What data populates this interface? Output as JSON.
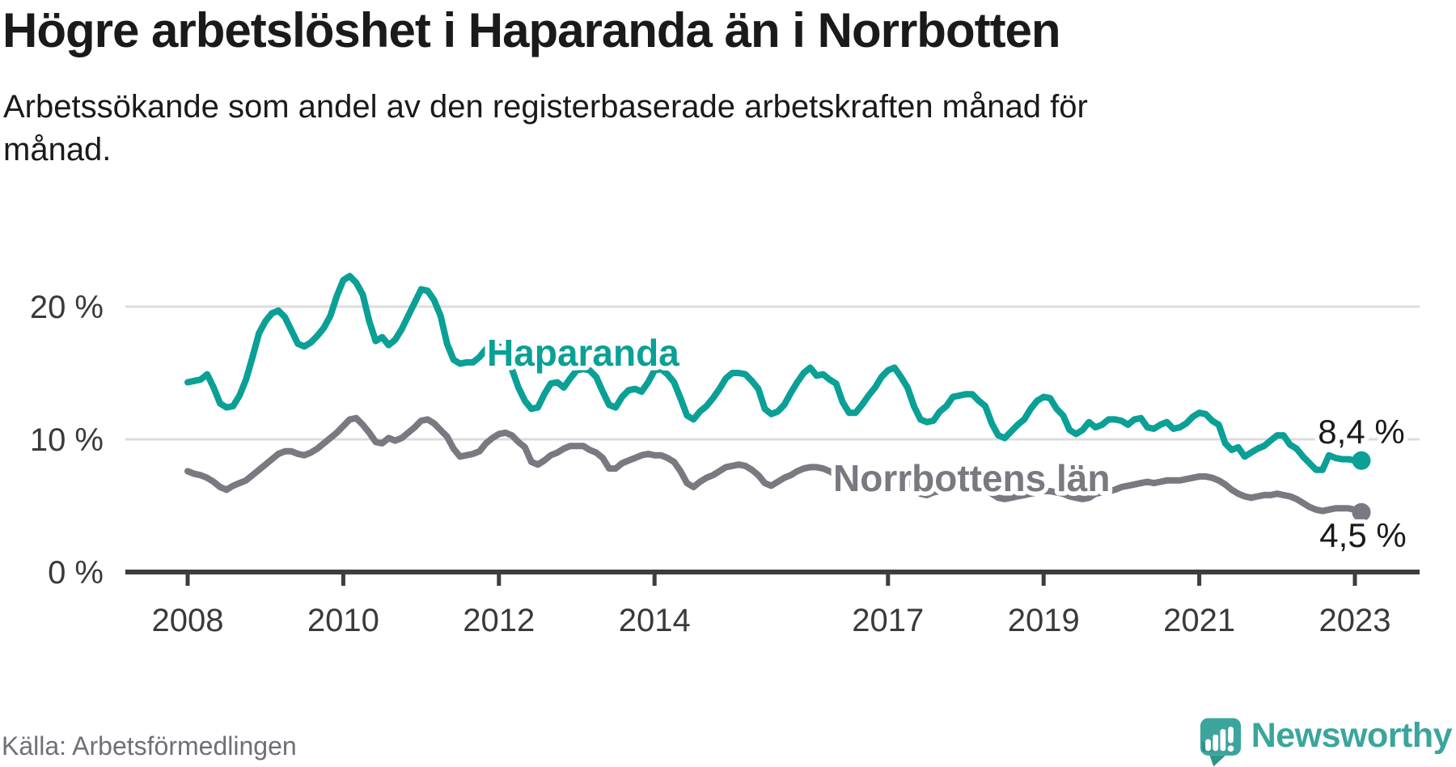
{
  "title": "Högre arbetslöshet i Haparanda än i Norrbotten",
  "subtitle_lines": [
    "Arbetssökande som andel av den registerbaserade arbetskraften månad för",
    "månad."
  ],
  "source": "Källa: Arbetsförmedlingen",
  "brand": {
    "name": "Newsworthy",
    "color": "#3ba59d"
  },
  "colors": {
    "haparanda": "#0aa096",
    "norrbotten": "#7a7880",
    "grid": "#dcdcdc",
    "axis": "#3d3d3d",
    "text": "#1a1a1a",
    "muted_text": "#6f6f78",
    "logo_teal": "#3ba59d"
  },
  "chart_data": {
    "type": "line",
    "title": "Högre arbetslöshet i Haparanda än i Norrbotten",
    "xlabel": "",
    "ylabel": "",
    "unit": "%",
    "frequency": "monthly",
    "x_start": "2008-01",
    "x_end": "2023-02",
    "x_tick_years": [
      2008,
      2010,
      2012,
      2014,
      2017,
      2019,
      2021,
      2023
    ],
    "y_ticks": [
      {
        "value": 0,
        "label": "0 %"
      },
      {
        "value": 10,
        "label": "10 %"
      },
      {
        "value": 20,
        "label": "20 %"
      }
    ],
    "ylim": [
      0,
      23.5
    ],
    "grid": "horizontal",
    "legend": "inline-labels",
    "series": [
      {
        "name": "Haparanda",
        "color": "#0aa096",
        "end_label": "8,4 %",
        "last_value": 8.4,
        "values": [
          14.3,
          14.4,
          14.5,
          14.9,
          13.9,
          12.7,
          12.4,
          12.5,
          13.3,
          14.5,
          16.2,
          18.0,
          18.9,
          19.5,
          19.7,
          19.2,
          18.2,
          17.2,
          17.0,
          17.3,
          17.8,
          18.4,
          19.3,
          20.8,
          22.0,
          22.3,
          21.8,
          20.9,
          18.9,
          17.4,
          17.7,
          17.1,
          17.5,
          18.3,
          19.3,
          20.3,
          21.3,
          21.2,
          20.5,
          19.3,
          17.2,
          16.0,
          15.7,
          15.8,
          15.8,
          16.2,
          16.8,
          16.9,
          17.0,
          16.6,
          15.3,
          13.9,
          12.9,
          12.3,
          12.4,
          13.4,
          14.2,
          14.3,
          13.9,
          14.6,
          15.2,
          15.3,
          15.2,
          14.7,
          13.6,
          12.6,
          12.4,
          13.2,
          13.7,
          13.8,
          13.6,
          14.3,
          15.2,
          15.3,
          14.9,
          14.3,
          13.1,
          11.8,
          11.5,
          12.1,
          12.5,
          13.1,
          13.8,
          14.6,
          15.0,
          15.0,
          14.9,
          14.4,
          13.8,
          12.3,
          11.9,
          12.1,
          12.6,
          13.5,
          14.3,
          15.0,
          15.4,
          14.8,
          14.9,
          14.5,
          14.2,
          12.8,
          12.0,
          12.0,
          12.6,
          13.3,
          13.9,
          14.7,
          15.2,
          15.4,
          14.7,
          13.9,
          12.5,
          11.5,
          11.3,
          11.4,
          12.1,
          12.5,
          13.2,
          13.3,
          13.4,
          13.4,
          12.9,
          12.5,
          11.2,
          10.3,
          10.1,
          10.6,
          11.1,
          11.5,
          12.3,
          12.9,
          13.2,
          13.1,
          12.3,
          11.8,
          10.7,
          10.4,
          10.7,
          11.3,
          10.9,
          11.1,
          11.5,
          11.5,
          11.4,
          11.1,
          11.5,
          11.6,
          10.9,
          10.8,
          11.1,
          11.3,
          10.8,
          10.9,
          11.2,
          11.7,
          12.0,
          11.9,
          11.4,
          11.1,
          9.7,
          9.2,
          9.4,
          8.7,
          9.0,
          9.3,
          9.5,
          9.9,
          10.3,
          10.3,
          9.6,
          9.3,
          8.7,
          8.2,
          7.7,
          7.7,
          8.8,
          8.6,
          8.5,
          8.5,
          8.4,
          8.4
        ]
      },
      {
        "name": "Norrbottens län",
        "color": "#7a7880",
        "end_label": "4,5 %",
        "last_value": 4.5,
        "values": [
          7.6,
          7.4,
          7.3,
          7.1,
          6.8,
          6.4,
          6.2,
          6.5,
          6.7,
          6.9,
          7.3,
          7.7,
          8.1,
          8.5,
          8.9,
          9.1,
          9.1,
          8.9,
          8.8,
          9.0,
          9.3,
          9.7,
          10.1,
          10.5,
          11.0,
          11.5,
          11.6,
          11.1,
          10.5,
          9.8,
          9.7,
          10.1,
          9.9,
          10.1,
          10.5,
          10.9,
          11.4,
          11.5,
          11.2,
          10.7,
          10.2,
          9.3,
          8.7,
          8.8,
          8.9,
          9.1,
          9.7,
          10.1,
          10.4,
          10.5,
          10.3,
          9.8,
          9.4,
          8.3,
          8.1,
          8.4,
          8.8,
          9.0,
          9.3,
          9.5,
          9.5,
          9.5,
          9.2,
          9.0,
          8.6,
          7.8,
          7.8,
          8.2,
          8.4,
          8.6,
          8.8,
          8.9,
          8.8,
          8.8,
          8.6,
          8.3,
          7.6,
          6.7,
          6.4,
          6.8,
          7.1,
          7.3,
          7.6,
          7.9,
          8.0,
          8.1,
          8.0,
          7.7,
          7.3,
          6.7,
          6.5,
          6.8,
          7.1,
          7.3,
          7.6,
          7.8,
          7.9,
          7.9,
          7.8,
          7.6,
          7.3,
          6.7,
          6.5,
          6.6,
          6.8,
          7.0,
          7.1,
          7.2,
          7.4,
          7.4,
          7.2,
          6.9,
          6.4,
          5.9,
          5.8,
          6.0,
          6.1,
          6.2,
          6.3,
          6.4,
          6.5,
          6.5,
          6.4,
          6.2,
          5.9,
          5.6,
          5.5,
          5.6,
          5.7,
          5.8,
          5.9,
          6.0,
          6.1,
          6.1,
          6.0,
          5.9,
          5.7,
          5.6,
          5.5,
          5.6,
          5.9,
          6.0,
          6.1,
          6.2,
          6.4,
          6.5,
          6.6,
          6.7,
          6.8,
          6.7,
          6.8,
          6.9,
          6.9,
          6.9,
          7.0,
          7.1,
          7.2,
          7.2,
          7.1,
          6.9,
          6.6,
          6.2,
          5.9,
          5.7,
          5.6,
          5.7,
          5.8,
          5.8,
          5.9,
          5.8,
          5.7,
          5.5,
          5.2,
          4.9,
          4.7,
          4.6,
          4.7,
          4.8,
          4.8,
          4.8,
          4.7,
          4.5
        ]
      }
    ]
  }
}
